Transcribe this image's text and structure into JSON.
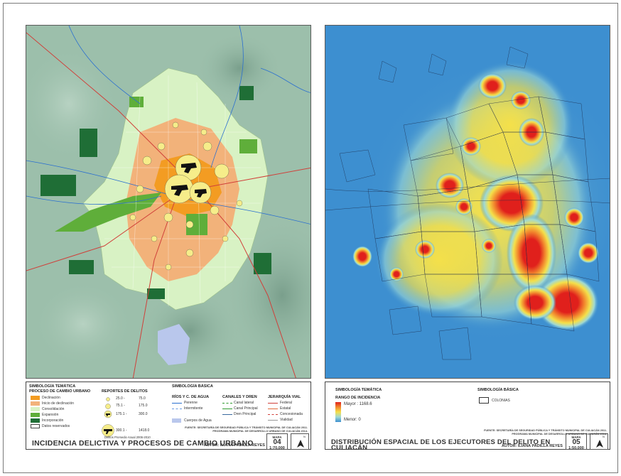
{
  "map1": {
    "legend": {
      "tematica_title": "SIMBOLOGÍA TEMÁTICA",
      "proceso_title": "PROCESO DE CAMBIO URBANO",
      "proceso_items": [
        {
          "label": "Declinación",
          "color": "#f39c22"
        },
        {
          "label": "Inicio de declinación",
          "color": "#f2b27a"
        },
        {
          "label": "Consolidación",
          "color": "#d8f2c4"
        },
        {
          "label": "Expansión",
          "color": "#5fae3a"
        },
        {
          "label": "Incorporación",
          "color": "#1f6e36"
        },
        {
          "label": "Datos reservados",
          "color": "#ffffff"
        }
      ],
      "reportes_title": "REPORTES DE DELITOS",
      "reportes_items": [
        {
          "from": "25.0 -",
          "to": "75.0"
        },
        {
          "from": "75.1 -",
          "to": "175.0"
        },
        {
          "from": "175.1 -",
          "to": "300.0"
        },
        {
          "from": "300.1 -",
          "to": "1418.0"
        }
      ],
      "reportes_note": "Delitos Promedio Anual 2006-2010",
      "basica_title": "SIMBOLOGÍA BÁSICA",
      "rios_title": "RÍOS Y C. DE AGUA",
      "rios_items": [
        "Perenne",
        "Intermitente",
        "Cuerpos de Agua"
      ],
      "canales_title": "CANALES Y DREN",
      "canales_items": [
        "Canal lateral",
        "Canal Principal",
        "Dren Principal"
      ],
      "jerarquia_title": "JERARQUÍA VIAL",
      "jerarquia_items": [
        "Federal",
        "Estatal",
        "Concesionada",
        "Vialidad"
      ],
      "fuente_1": "FUENTE: SECRETARÍA DE SEGURIDAD PÚBLICA Y TRÁNSITO MUNICIPAL DE CULIACÁN 2011.",
      "fuente_2": "PROGRAMA MUNICIPAL DE DESARROLLO URBANO DE CULIACÁN 2014.",
      "title": "INCIDENCIA DELICTIVA Y PROCESOS DE CAMBIO URBANO",
      "author": "AUTOR: ILIANA PADILLA REYES",
      "mapa_label": "MAPA",
      "mapa_number": "04",
      "scale": "1:70,000",
      "north": "N"
    }
  },
  "map2": {
    "legend": {
      "tematica_title": "SIMBOLOGÍA TEMÁTICA",
      "rango_title": "RANGO DE INCIDENCIA",
      "mayor": "Mayor : 1168.6",
      "menor": "Menor: 0",
      "basica_title": "SIMBOLOGÍA BÁSICA",
      "colonias": "COLONIAS",
      "fuente_1": "FUENTE: SECRETARÍA DE SEGURIDAD PÚBLICA Y TRÁNSITO MUNICIPAL DE CULIACÁN 2011.",
      "fuente_2": "PROGRAMA MUNICIPAL DE DESARROLLO URBANO DE CULIACÁN 2014.",
      "title_1": "DISTRIBUCIÓN ESPACIAL DE LOS EJECUTORES DEL DELITO EN",
      "title_2": "CULIACÁN",
      "author": "AUTOR: ILIANA PADILLA REYES",
      "mapa_label": "MAPA",
      "mapa_number": "05",
      "scale": "1:50,000",
      "north": "N"
    }
  },
  "colors": {
    "terrain": "#98bca9",
    "hot_red": "#e0201c",
    "river_blue": "#2a6fd0",
    "road_red": "#d0403a"
  }
}
